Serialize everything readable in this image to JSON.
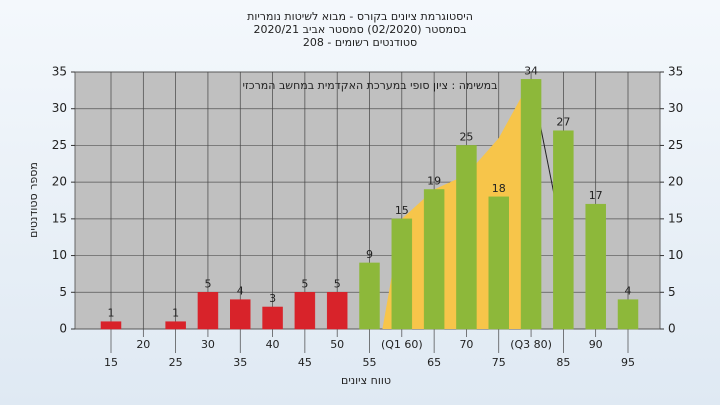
{
  "chart_data": {
    "type": "bar",
    "title": [
      "היסטוגרמת ציונים בקורס - מבוא לשיטות נומריות",
      "בסמסטר  (02/2020)  סמסטר אביב 2020/21",
      "סטודנטים רשומים - 208"
    ],
    "annotation": "במשימה : ציון סופי במערכת האקדמית במחשב המרכזי",
    "x_label": "טווח ציונים",
    "y_label": "מספר סטודנטים",
    "categories": [
      "15",
      "20",
      "25",
      "30",
      "35",
      "40",
      "45",
      "50",
      "55",
      "(Q1 60)",
      "65",
      "70",
      "75",
      "(Q3 80)",
      "85",
      "90",
      "95"
    ],
    "values": [
      1,
      null,
      1,
      5,
      4,
      3,
      5,
      5,
      9,
      15,
      19,
      25,
      18,
      34,
      27,
      17,
      4
    ],
    "colors": [
      "#d8232a",
      "#d8232a",
      "#d8232a",
      "#d8232a",
      "#d8232a",
      "#d8232a",
      "#d8232a",
      "#d8232a",
      "#8db83a",
      "#8db83a",
      "#8db83a",
      "#8db83a",
      "#8db83a",
      "#8db83a",
      "#8db83a",
      "#8db83a",
      "#8db83a"
    ],
    "area": {
      "color": "#f7c54a",
      "values": [
        null,
        null,
        null,
        null,
        null,
        null,
        null,
        null,
        null,
        15,
        19,
        21,
        26,
        34,
        12,
        null,
        null
      ]
    },
    "ylim": [
      0,
      35
    ],
    "yticks": [
      0,
      5,
      10,
      15,
      20,
      25,
      30,
      35
    ],
    "y2lim": [
      0,
      35
    ],
    "y2ticks": [
      0,
      5,
      10,
      15,
      20,
      25,
      30,
      35
    ],
    "grid": true
  }
}
